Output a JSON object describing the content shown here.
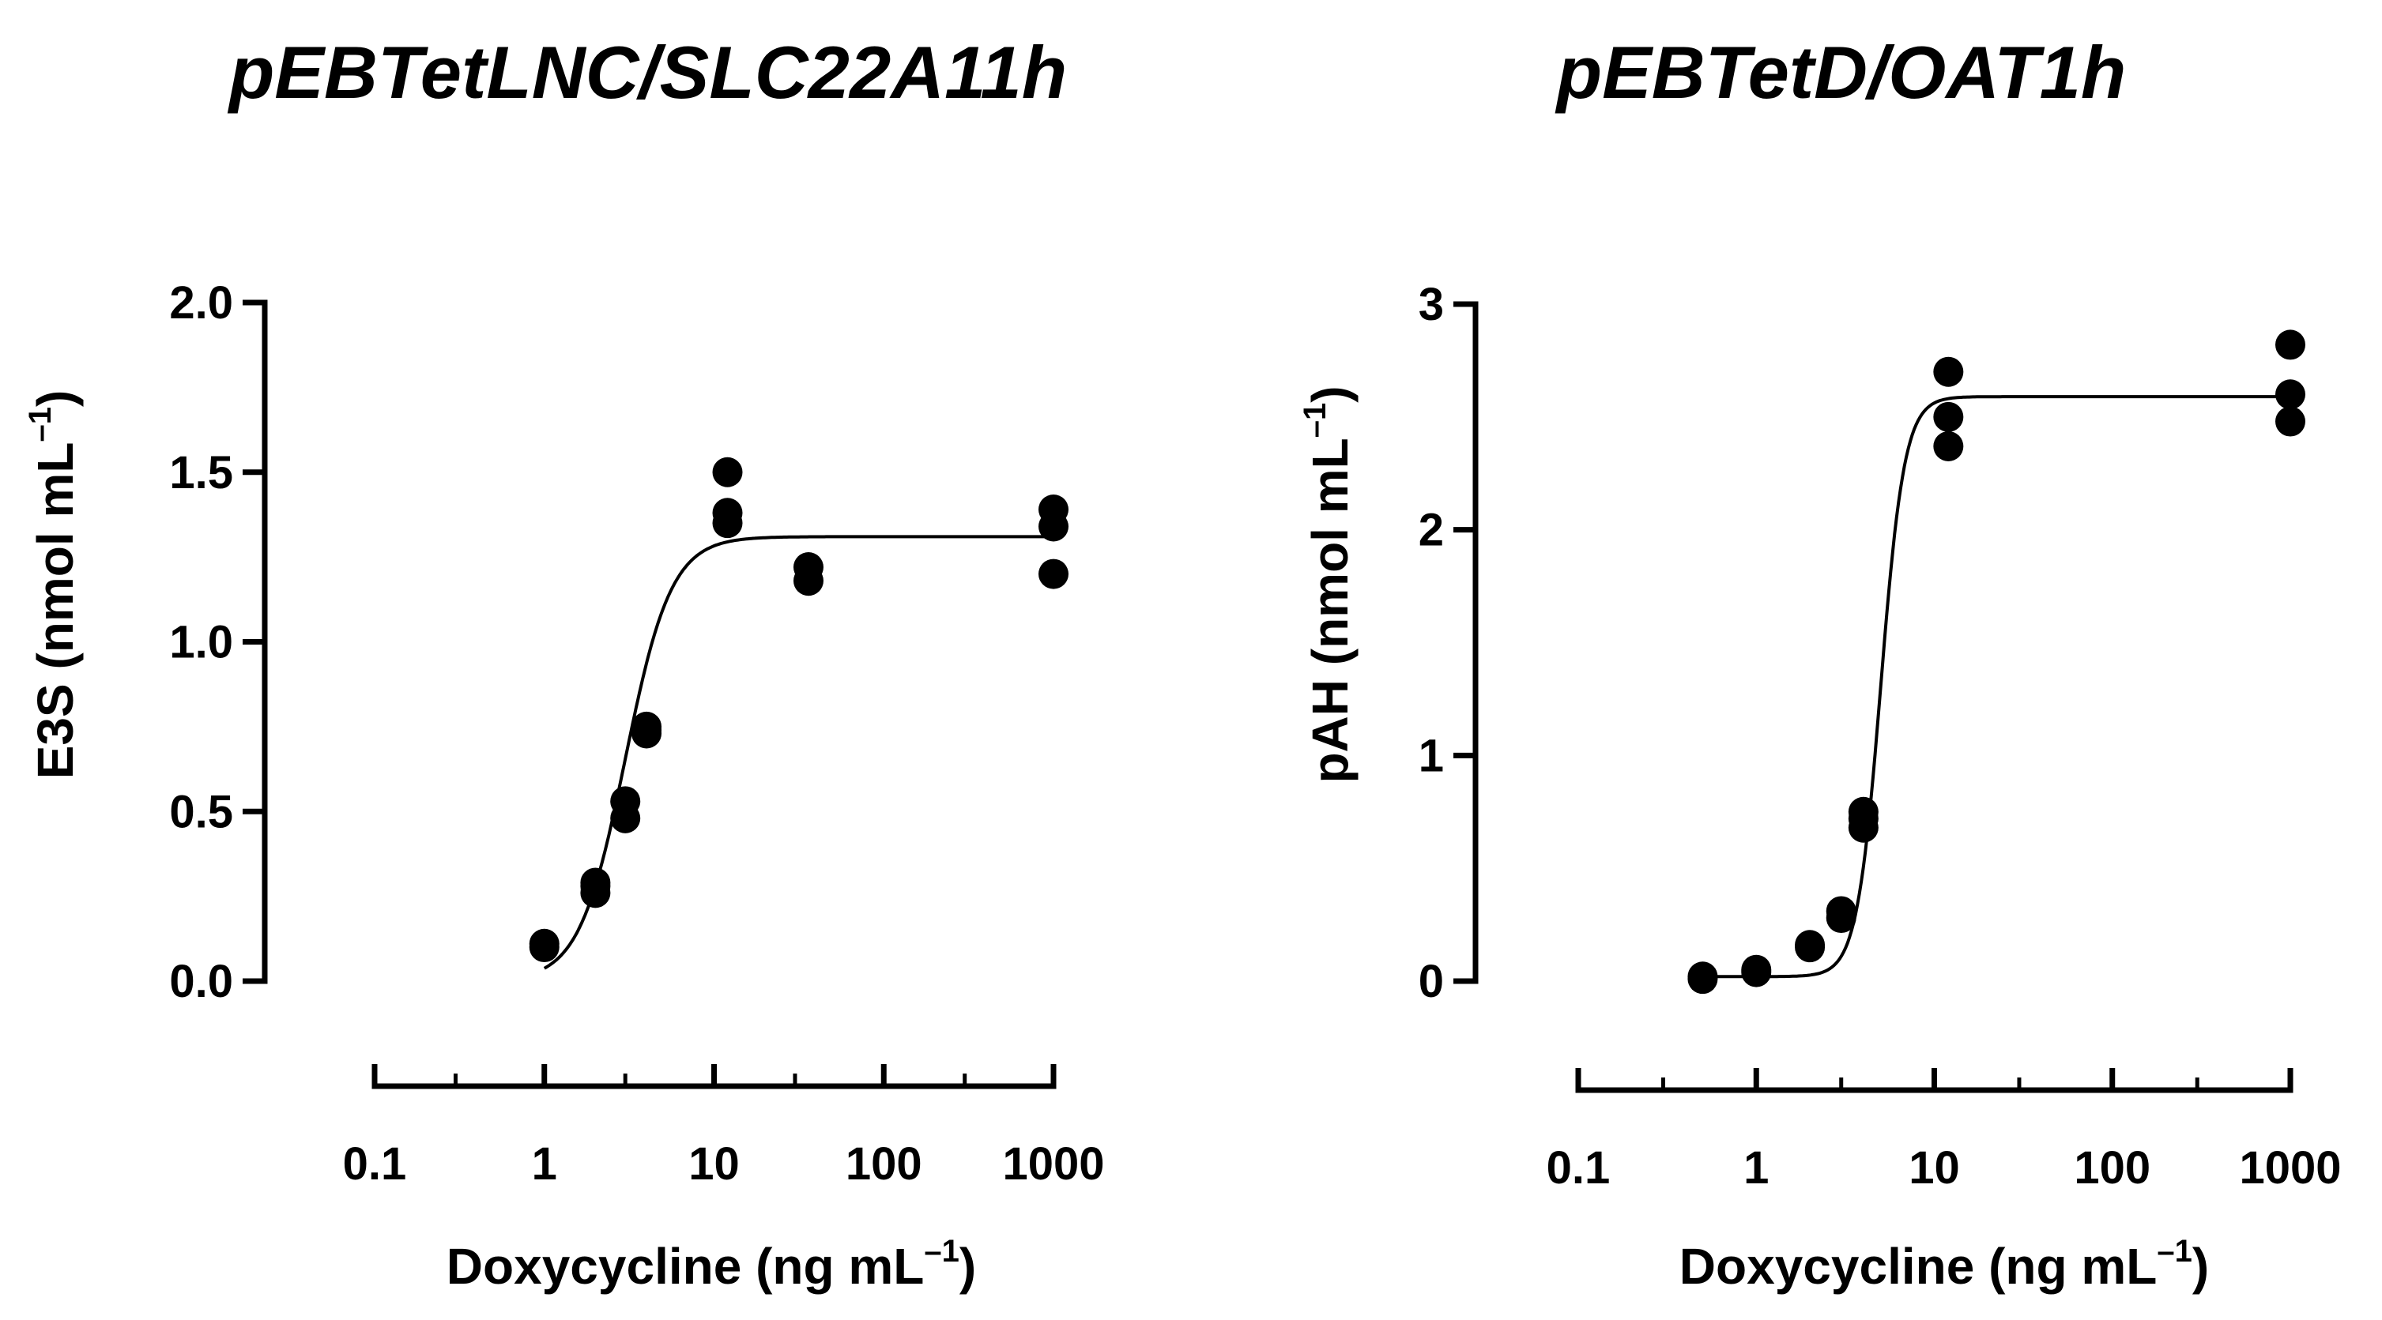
{
  "chart_data": [
    {
      "type": "scatter",
      "title": "pEBTetLNC/SLC22A11h",
      "ylabel": "E3S (nmol mL",
      "ylabel_sup": "–1",
      "ylabel_close": ")",
      "xlabel": "Doxycycline (ng mL",
      "xlabel_sup": "–1",
      "xlabel_close": ")",
      "xscale": "log",
      "xlim": [
        0.1,
        1000
      ],
      "xticks": [
        0.1,
        1,
        10,
        100,
        1000
      ],
      "xtick_labels": [
        "0.1",
        "1",
        "10",
        "100",
        "1000"
      ],
      "ylim": [
        0,
        2.0
      ],
      "yticks": [
        0,
        0.5,
        1.0,
        1.5,
        2.0
      ],
      "ytick_labels": [
        "0.0",
        "0.5",
        "1.0",
        "1.5",
        "2.0"
      ],
      "series": [
        {
          "name": "data",
          "points": [
            {
              "x": 1,
              "y": 0.1
            },
            {
              "x": 1,
              "y": 0.11
            },
            {
              "x": 2,
              "y": 0.26
            },
            {
              "x": 2,
              "y": 0.28
            },
            {
              "x": 2,
              "y": 0.29
            },
            {
              "x": 3,
              "y": 0.48
            },
            {
              "x": 3,
              "y": 0.53
            },
            {
              "x": 4,
              "y": 0.73
            },
            {
              "x": 4,
              "y": 0.74
            },
            {
              "x": 4,
              "y": 0.75
            },
            {
              "x": 12,
              "y": 1.35
            },
            {
              "x": 12,
              "y": 1.38
            },
            {
              "x": 12,
              "y": 1.5
            },
            {
              "x": 36,
              "y": 1.18
            },
            {
              "x": 36,
              "y": 1.22
            },
            {
              "x": 1000,
              "y": 1.2
            },
            {
              "x": 1000,
              "y": 1.34
            },
            {
              "x": 1000,
              "y": 1.39
            }
          ]
        }
      ],
      "fit": {
        "model": "hill",
        "bottom": 0.0,
        "top": 1.31,
        "ec50": 3.0,
        "hill": 3.2,
        "x_start": 1,
        "x_end": 1000
      }
    },
    {
      "type": "scatter",
      "title": "pEBTetD/OAT1h",
      "ylabel": "pAH (nmol mL",
      "ylabel_sup": "–1",
      "ylabel_close": ")",
      "xlabel": "Doxycycline (ng mL",
      "xlabel_sup": "–1",
      "xlabel_close": ")",
      "xscale": "log",
      "xlim": [
        0.1,
        1000
      ],
      "xticks": [
        0.1,
        1,
        10,
        100,
        1000
      ],
      "xtick_labels": [
        "0.1",
        "1",
        "10",
        "100",
        "1000"
      ],
      "ylim": [
        0,
        3
      ],
      "yticks": [
        0,
        1,
        2,
        3
      ],
      "ytick_labels": [
        "0",
        "1",
        "2",
        "3"
      ],
      "series": [
        {
          "name": "data",
          "points": [
            {
              "x": 0.5,
              "y": 0.02
            },
            {
              "x": 0.5,
              "y": 0.01
            },
            {
              "x": 1,
              "y": 0.04
            },
            {
              "x": 1,
              "y": 0.05
            },
            {
              "x": 2,
              "y": 0.15
            },
            {
              "x": 2,
              "y": 0.16
            },
            {
              "x": 3,
              "y": 0.28
            },
            {
              "x": 3,
              "y": 0.31
            },
            {
              "x": 4,
              "y": 0.68
            },
            {
              "x": 4,
              "y": 0.72
            },
            {
              "x": 4,
              "y": 0.75
            },
            {
              "x": 12,
              "y": 2.37
            },
            {
              "x": 12,
              "y": 2.5
            },
            {
              "x": 12,
              "y": 2.7
            },
            {
              "x": 1000,
              "y": 2.48
            },
            {
              "x": 1000,
              "y": 2.6
            },
            {
              "x": 1000,
              "y": 2.82
            }
          ]
        }
      ],
      "fit": {
        "model": "hill",
        "bottom": 0.02,
        "top": 2.59,
        "ec50": 5.0,
        "hill": 6.5,
        "x_start": 0.5,
        "x_end": 1000
      }
    }
  ]
}
